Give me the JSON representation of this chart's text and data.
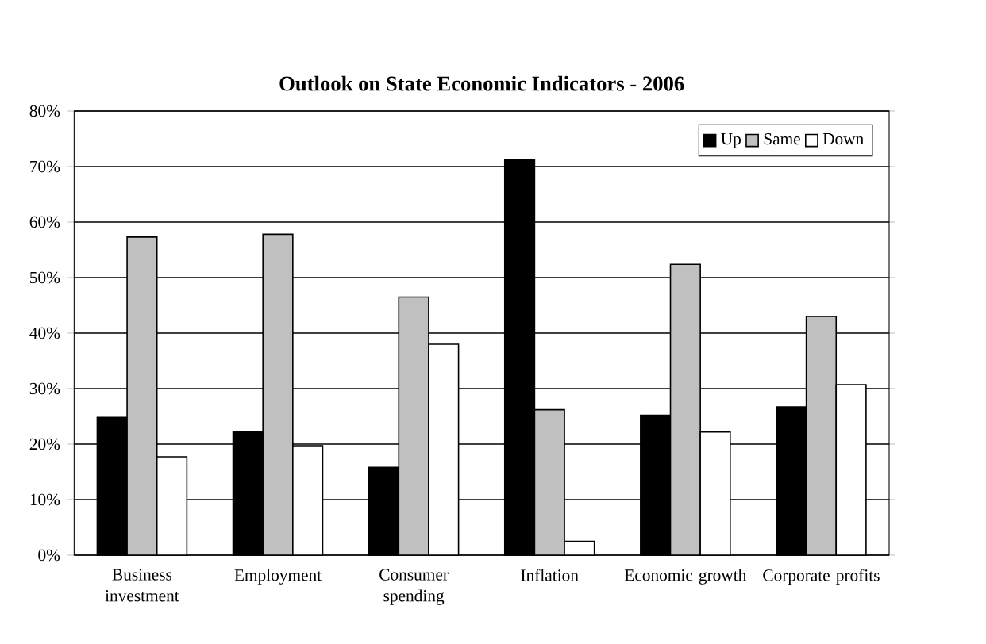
{
  "chart_data": {
    "type": "bar",
    "title": "Outlook on State Economic Indicators - 2006",
    "categories": [
      "Business investment",
      "Employment",
      "Consumer spending",
      "Inflation",
      "Economic growth",
      "Corporate profits"
    ],
    "series": [
      {
        "name": "Up",
        "color": "#000000",
        "values": [
          24.8,
          22.3,
          15.8,
          71.3,
          25.2,
          26.7
        ]
      },
      {
        "name": "Same",
        "color": "#c0c0c0",
        "values": [
          57.3,
          57.8,
          46.5,
          26.2,
          52.4,
          43.0
        ]
      },
      {
        "name": "Down",
        "color": "#ffffff",
        "values": [
          17.7,
          19.7,
          38.0,
          2.5,
          22.2,
          30.7
        ]
      }
    ],
    "ylim": [
      0,
      80
    ],
    "yticks": [
      {
        "value": 0,
        "label": "0%"
      },
      {
        "value": 10,
        "label": "10%"
      },
      {
        "value": 20,
        "label": "20%"
      },
      {
        "value": 30,
        "label": "30%"
      },
      {
        "value": 40,
        "label": "40%"
      },
      {
        "value": 50,
        "label": "50%"
      },
      {
        "value": 60,
        "label": "60%"
      },
      {
        "value": 70,
        "label": "70%"
      },
      {
        "value": 80,
        "label": "80%"
      }
    ],
    "grid": "y",
    "legend": "top right"
  }
}
